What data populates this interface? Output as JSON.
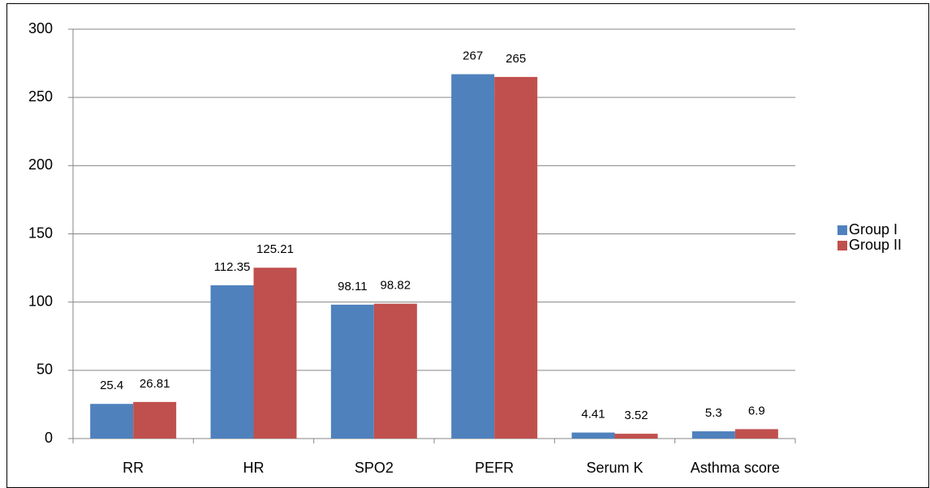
{
  "chart_data": {
    "type": "bar",
    "categories": [
      "RR",
      "HR",
      "SPO2",
      "PEFR",
      "Serum K",
      "Asthma score"
    ],
    "series": [
      {
        "name": "Group I",
        "color": "#4f81bd",
        "values": [
          25.4,
          112.35,
          98.11,
          267,
          4.41,
          5.3
        ]
      },
      {
        "name": "Group II",
        "color": "#c0504d",
        "values": [
          26.81,
          125.21,
          98.82,
          265,
          3.52,
          6.9
        ]
      }
    ],
    "ylim": [
      0,
      300
    ],
    "yticks": [
      0,
      50,
      100,
      150,
      200,
      250,
      300
    ],
    "grid": true,
    "legend": "right"
  }
}
